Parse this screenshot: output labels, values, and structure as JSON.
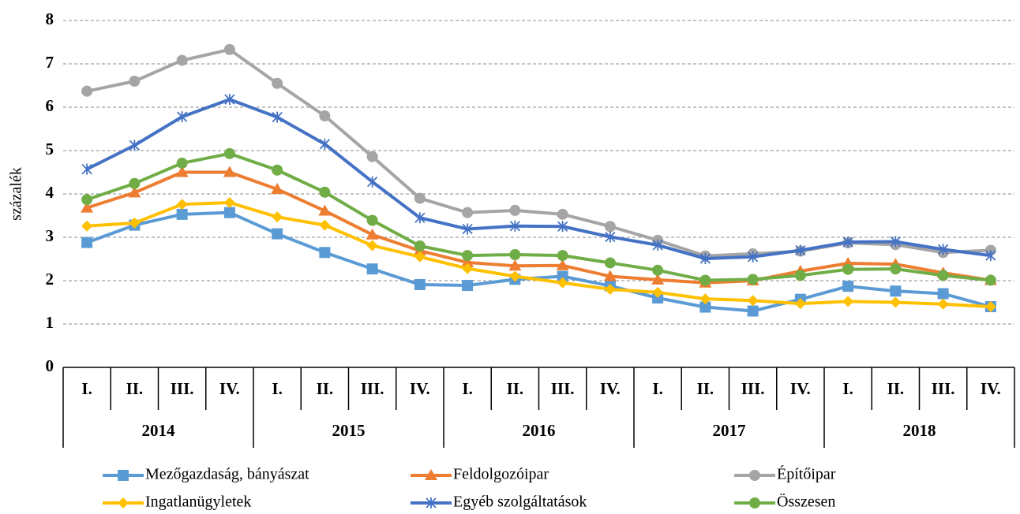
{
  "chart_data": {
    "type": "line",
    "y_label": "százalék",
    "categories": [
      "I.",
      "II.",
      "III.",
      "IV.",
      "I.",
      "II.",
      "III.",
      "IV.",
      "I.",
      "II.",
      "III.",
      "IV.",
      "I.",
      "II.",
      "III.",
      "IV.",
      "I.",
      "II.",
      "III.",
      "IV."
    ],
    "years": [
      "2014",
      "2015",
      "2016",
      "2017",
      "2018"
    ],
    "ylim": [
      0,
      8
    ],
    "yticks": [
      0,
      1,
      2,
      3,
      4,
      5,
      6,
      7,
      8
    ],
    "grid": true,
    "series": [
      {
        "name": "Mezőgazdaság, bányászat",
        "color": "#5B9BD5",
        "marker": "square",
        "values": [
          2.88,
          3.28,
          3.53,
          3.57,
          3.08,
          2.65,
          2.27,
          1.91,
          1.89,
          2.03,
          2.1,
          1.88,
          1.6,
          1.39,
          1.3,
          1.57,
          1.87,
          1.76,
          1.7,
          1.4
        ]
      },
      {
        "name": "Feldolgozóipar",
        "color": "#ED7D31",
        "marker": "triangle",
        "values": [
          3.68,
          4.03,
          4.5,
          4.5,
          4.11,
          3.61,
          3.06,
          2.69,
          2.42,
          2.34,
          2.35,
          2.1,
          2.02,
          1.95,
          2.0,
          2.22,
          2.4,
          2.38,
          2.18,
          2.01
        ]
      },
      {
        "name": "Építőipar",
        "color": "#A5A5A5",
        "marker": "circle",
        "values": [
          6.37,
          6.6,
          7.08,
          7.33,
          6.55,
          5.8,
          4.86,
          3.9,
          3.57,
          3.62,
          3.53,
          3.25,
          2.93,
          2.57,
          2.62,
          2.68,
          2.87,
          2.83,
          2.65,
          2.7
        ]
      },
      {
        "name": "Ingatlanügyletek",
        "color": "#FFC000",
        "marker": "diamond",
        "values": [
          3.26,
          3.33,
          3.76,
          3.8,
          3.47,
          3.28,
          2.81,
          2.55,
          2.28,
          2.1,
          1.95,
          1.8,
          1.73,
          1.58,
          1.54,
          1.47,
          1.52,
          1.5,
          1.46,
          1.4
        ]
      },
      {
        "name": "Egyéb szolgáltatások",
        "color": "#4472C4",
        "marker": "star",
        "values": [
          4.57,
          5.12,
          5.78,
          6.18,
          5.77,
          5.15,
          4.28,
          3.45,
          3.19,
          3.26,
          3.25,
          3.01,
          2.82,
          2.51,
          2.55,
          2.7,
          2.89,
          2.9,
          2.72,
          2.58
        ]
      },
      {
        "name": "Összesen",
        "color": "#70AD47",
        "marker": "circle",
        "values": [
          3.87,
          4.24,
          4.71,
          4.93,
          4.55,
          4.04,
          3.39,
          2.8,
          2.58,
          2.6,
          2.58,
          2.41,
          2.24,
          2.01,
          2.03,
          2.12,
          2.26,
          2.27,
          2.12,
          2.01
        ]
      }
    ]
  }
}
